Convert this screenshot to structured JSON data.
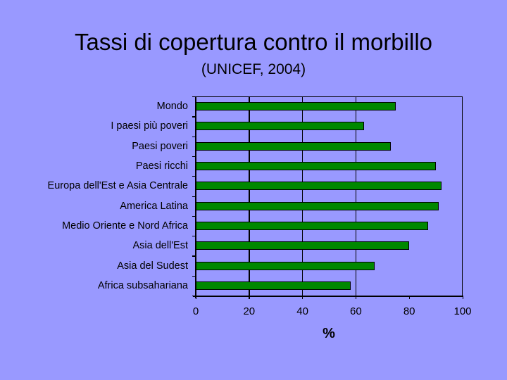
{
  "slide": {
    "title": "Tassi di copertura contro il morbillo",
    "subtitle": "(UNICEF, 2004)"
  },
  "chart_data": {
    "type": "bar",
    "orientation": "horizontal",
    "title": "Tassi di copertura contro il morbillo",
    "subtitle": "(UNICEF, 2004)",
    "xlabel": "%",
    "ylabel": "",
    "xlim": [
      0,
      100
    ],
    "x_ticks": [
      "0",
      "20",
      "40",
      "60",
      "80",
      "100"
    ],
    "gridlines_at": [
      20,
      40,
      60
    ],
    "legend": null,
    "colors": {
      "bar": "#008800",
      "background": "#9999ff",
      "outline": "#000000"
    },
    "categories": [
      "Mondo",
      "I paesi più poveri",
      "Paesi poveri",
      "Paesi ricchi",
      "Europa dell'Est e Asia Centrale",
      "America Latina",
      "Medio Oriente e Nord Africa",
      "Asia dell'Est",
      "Asia del Sudest",
      "Africa subsahariana"
    ],
    "values": [
      75,
      63,
      73,
      90,
      92,
      91,
      87,
      80,
      67,
      58
    ]
  }
}
